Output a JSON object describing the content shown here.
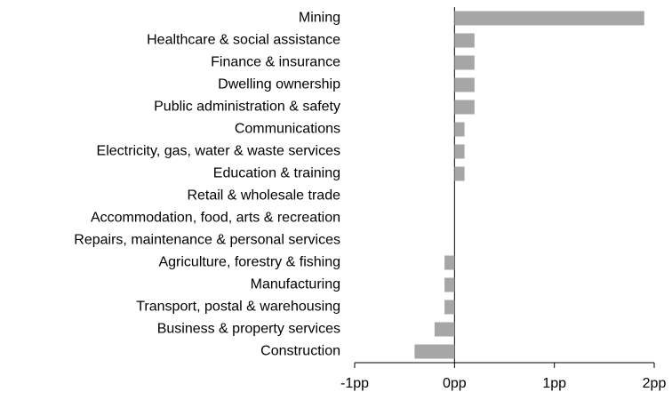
{
  "chart_data": {
    "type": "bar",
    "orientation": "horizontal",
    "color": "#a6a6a6",
    "categories": [
      "Mining",
      "Healthcare & social assistance",
      "Finance & insurance",
      "Dwelling ownership",
      "Public administration & safety",
      "Communications",
      "Electricity, gas, water & waste services",
      "Education & training",
      "Retail & wholesale trade",
      "Accommodation, food, arts & recreation",
      "Repairs, maintenance & personal services",
      "Agriculture, forestry & fishing",
      "Manufacturing",
      "Transport, postal & warehousing",
      "Business & property services",
      "Construction"
    ],
    "values": [
      1.9,
      0.2,
      0.2,
      0.2,
      0.2,
      0.1,
      0.1,
      0.1,
      0,
      0,
      0,
      -0.1,
      -0.1,
      -0.1,
      -0.2,
      -0.4
    ],
    "xlim": [
      -1,
      2
    ],
    "xticks": [
      {
        "value": -1,
        "label": "-1pp"
      },
      {
        "value": 0,
        "label": "0pp"
      },
      {
        "value": 1,
        "label": "1pp"
      },
      {
        "value": 2,
        "label": "2pp"
      }
    ],
    "grid": false
  }
}
